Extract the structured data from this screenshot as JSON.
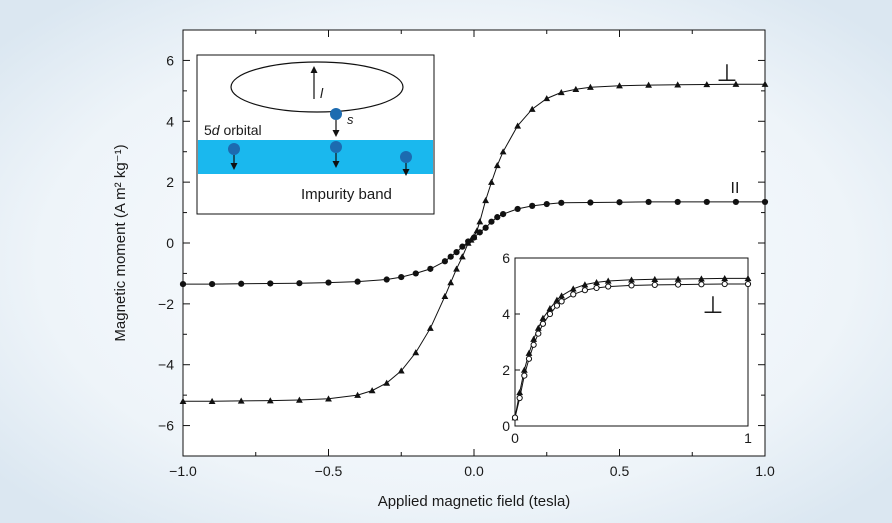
{
  "chart_data": [
    {
      "type": "scatter",
      "title": "",
      "xlabel": "Applied magnetic field (tesla)",
      "ylabel": "Magnetic moment (A m² kg⁻¹)",
      "xlim": [
        -1.0,
        1.0
      ],
      "ylim": [
        -7.0,
        7.0
      ],
      "xticks": [
        -1.0,
        -0.5,
        0.0,
        0.5,
        1.0
      ],
      "xtick_labels": [
        "−1.0",
        "−0.5",
        "0.0",
        "0.5",
        "1.0"
      ],
      "yticks": [
        -6,
        -4,
        -2,
        0,
        2,
        4,
        6
      ],
      "ytick_labels": [
        "−6",
        "−4",
        "−2",
        "0",
        "2",
        "4",
        "6"
      ],
      "grid": false,
      "series": [
        {
          "name": "⊥",
          "marker": "triangle",
          "x": [
            -1.0,
            -0.9,
            -0.8,
            -0.7,
            -0.6,
            -0.5,
            -0.4,
            -0.35,
            -0.3,
            -0.25,
            -0.2,
            -0.15,
            -0.1,
            -0.08,
            -0.06,
            -0.04,
            -0.02,
            -0.01,
            0.0,
            0.01,
            0.02,
            0.04,
            0.06,
            0.08,
            0.1,
            0.15,
            0.2,
            0.25,
            0.3,
            0.35,
            0.4,
            0.5,
            0.6,
            0.7,
            0.8,
            0.9,
            1.0
          ],
          "y": [
            -5.2,
            -5.2,
            -5.19,
            -5.18,
            -5.16,
            -5.12,
            -5.0,
            -4.85,
            -4.6,
            -4.2,
            -3.6,
            -2.8,
            -1.75,
            -1.3,
            -0.85,
            -0.45,
            0.0,
            0.1,
            0.2,
            0.4,
            0.7,
            1.4,
            2.0,
            2.55,
            3.0,
            3.85,
            4.4,
            4.75,
            4.95,
            5.05,
            5.12,
            5.17,
            5.19,
            5.2,
            5.21,
            5.22,
            5.22
          ]
        },
        {
          "name": "II",
          "marker": "circle",
          "x": [
            -1.0,
            -0.9,
            -0.8,
            -0.7,
            -0.6,
            -0.5,
            -0.4,
            -0.3,
            -0.25,
            -0.2,
            -0.15,
            -0.1,
            -0.08,
            -0.06,
            -0.04,
            -0.02,
            0.0,
            0.02,
            0.04,
            0.06,
            0.08,
            0.1,
            0.15,
            0.2,
            0.25,
            0.3,
            0.4,
            0.5,
            0.6,
            0.7,
            0.8,
            0.9,
            1.0
          ],
          "y": [
            -1.35,
            -1.35,
            -1.34,
            -1.33,
            -1.32,
            -1.3,
            -1.27,
            -1.2,
            -1.12,
            -1.0,
            -0.85,
            -0.6,
            -0.45,
            -0.3,
            -0.12,
            0.05,
            0.18,
            0.35,
            0.5,
            0.7,
            0.85,
            0.95,
            1.12,
            1.22,
            1.28,
            1.32,
            1.33,
            1.34,
            1.35,
            1.35,
            1.35,
            1.35,
            1.35
          ]
        }
      ],
      "annotations": [
        "⊥",
        "II"
      ]
    },
    {
      "type": "scatter",
      "title": "",
      "xlabel": "",
      "ylabel": "",
      "xlim": [
        0,
        1
      ],
      "ylim": [
        0,
        6
      ],
      "xticks": [
        0,
        1
      ],
      "xtick_labels": [
        "0",
        "1"
      ],
      "yticks": [
        0,
        2,
        4,
        6
      ],
      "ytick_labels": [
        "0",
        "2",
        "4",
        "6"
      ],
      "grid": false,
      "series": [
        {
          "marker": "triangle",
          "x": [
            0.0,
            0.02,
            0.04,
            0.06,
            0.08,
            0.1,
            0.12,
            0.15,
            0.18,
            0.2,
            0.25,
            0.3,
            0.35,
            0.4,
            0.5,
            0.6,
            0.7,
            0.8,
            0.9,
            1.0
          ],
          "y": [
            0.3,
            1.2,
            2.0,
            2.6,
            3.1,
            3.5,
            3.85,
            4.2,
            4.5,
            4.65,
            4.9,
            5.05,
            5.13,
            5.18,
            5.22,
            5.24,
            5.25,
            5.26,
            5.27,
            5.27
          ]
        },
        {
          "marker": "open-circle",
          "x": [
            0.0,
            0.02,
            0.04,
            0.06,
            0.08,
            0.1,
            0.12,
            0.15,
            0.18,
            0.2,
            0.25,
            0.3,
            0.35,
            0.4,
            0.5,
            0.6,
            0.7,
            0.8,
            0.9,
            1.0
          ],
          "y": [
            0.3,
            1.0,
            1.8,
            2.4,
            2.9,
            3.3,
            3.65,
            4.0,
            4.3,
            4.45,
            4.7,
            4.85,
            4.93,
            4.98,
            5.02,
            5.04,
            5.05,
            5.06,
            5.07,
            5.07
          ]
        }
      ],
      "annotations": [
        "⊥"
      ]
    }
  ],
  "schematic": {
    "orbital_moment": "l",
    "spin": "s",
    "orbital_label": "5d orbital",
    "band_label": "Impurity band"
  },
  "colors": {
    "background": "#e2ecf4",
    "plot_background": "#ffffff",
    "impurity_band": "#1ab8ee",
    "electron": "#1c6bb0",
    "ink": "#111111"
  }
}
